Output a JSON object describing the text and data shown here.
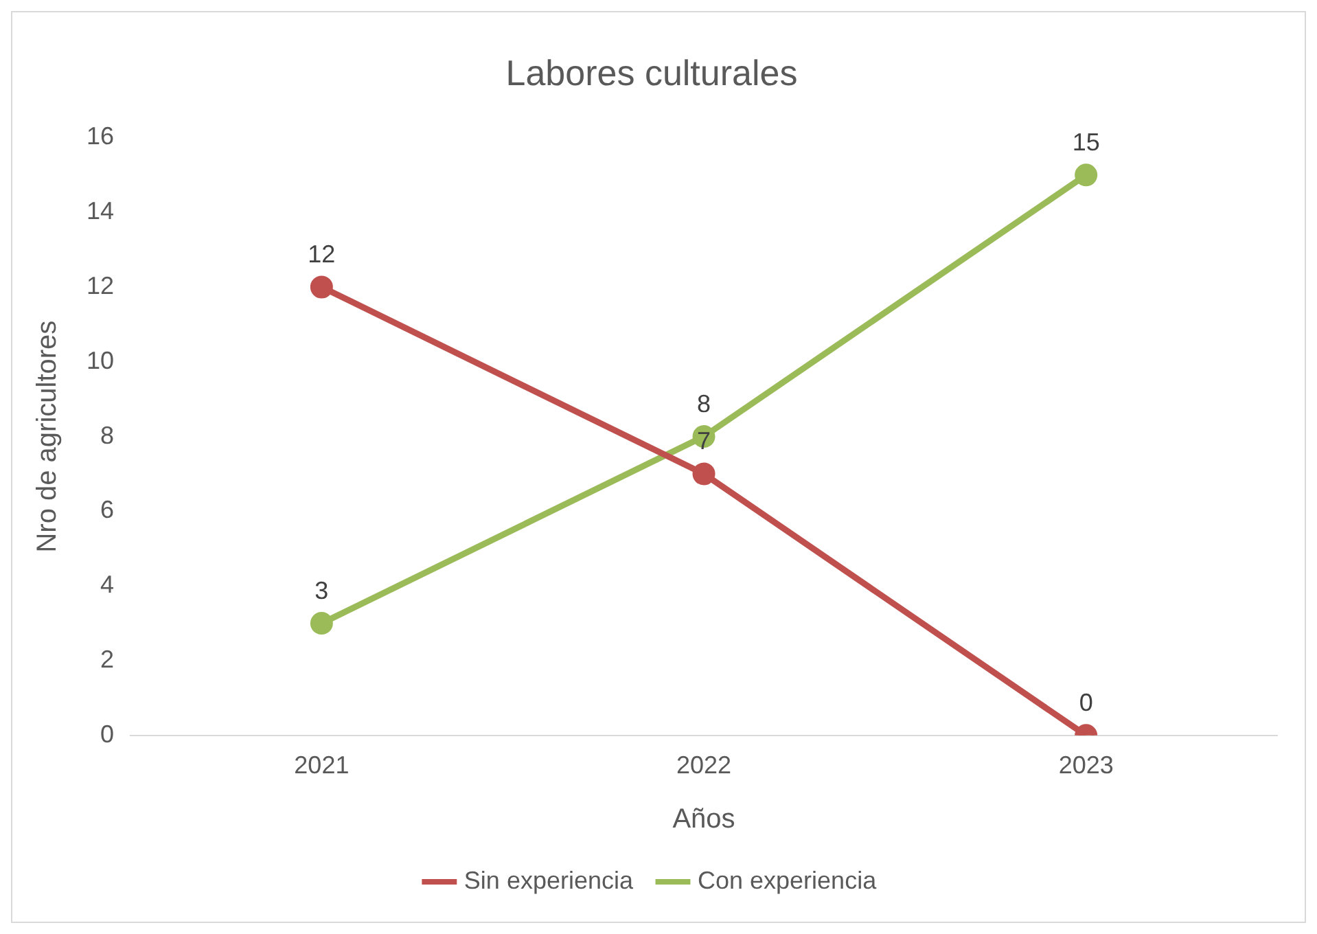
{
  "chart_data": {
    "type": "line",
    "title": "Labores culturales",
    "xlabel": "Años",
    "ylabel": "Nro de agricultores",
    "categories": [
      "2021",
      "2022",
      "2023"
    ],
    "series": [
      {
        "name": "Sin experiencia",
        "color": "#c0504d",
        "values": [
          12,
          7,
          0
        ]
      },
      {
        "name": "Con experiencia",
        "color": "#9bbb59",
        "values": [
          3,
          8,
          15
        ]
      }
    ],
    "ylim": [
      0,
      16
    ],
    "yticks": [
      0,
      2,
      4,
      6,
      8,
      10,
      12,
      14,
      16
    ],
    "grid": false,
    "legend": "bottom",
    "marker": "circle",
    "line_style": "solid",
    "data_labels": true
  }
}
